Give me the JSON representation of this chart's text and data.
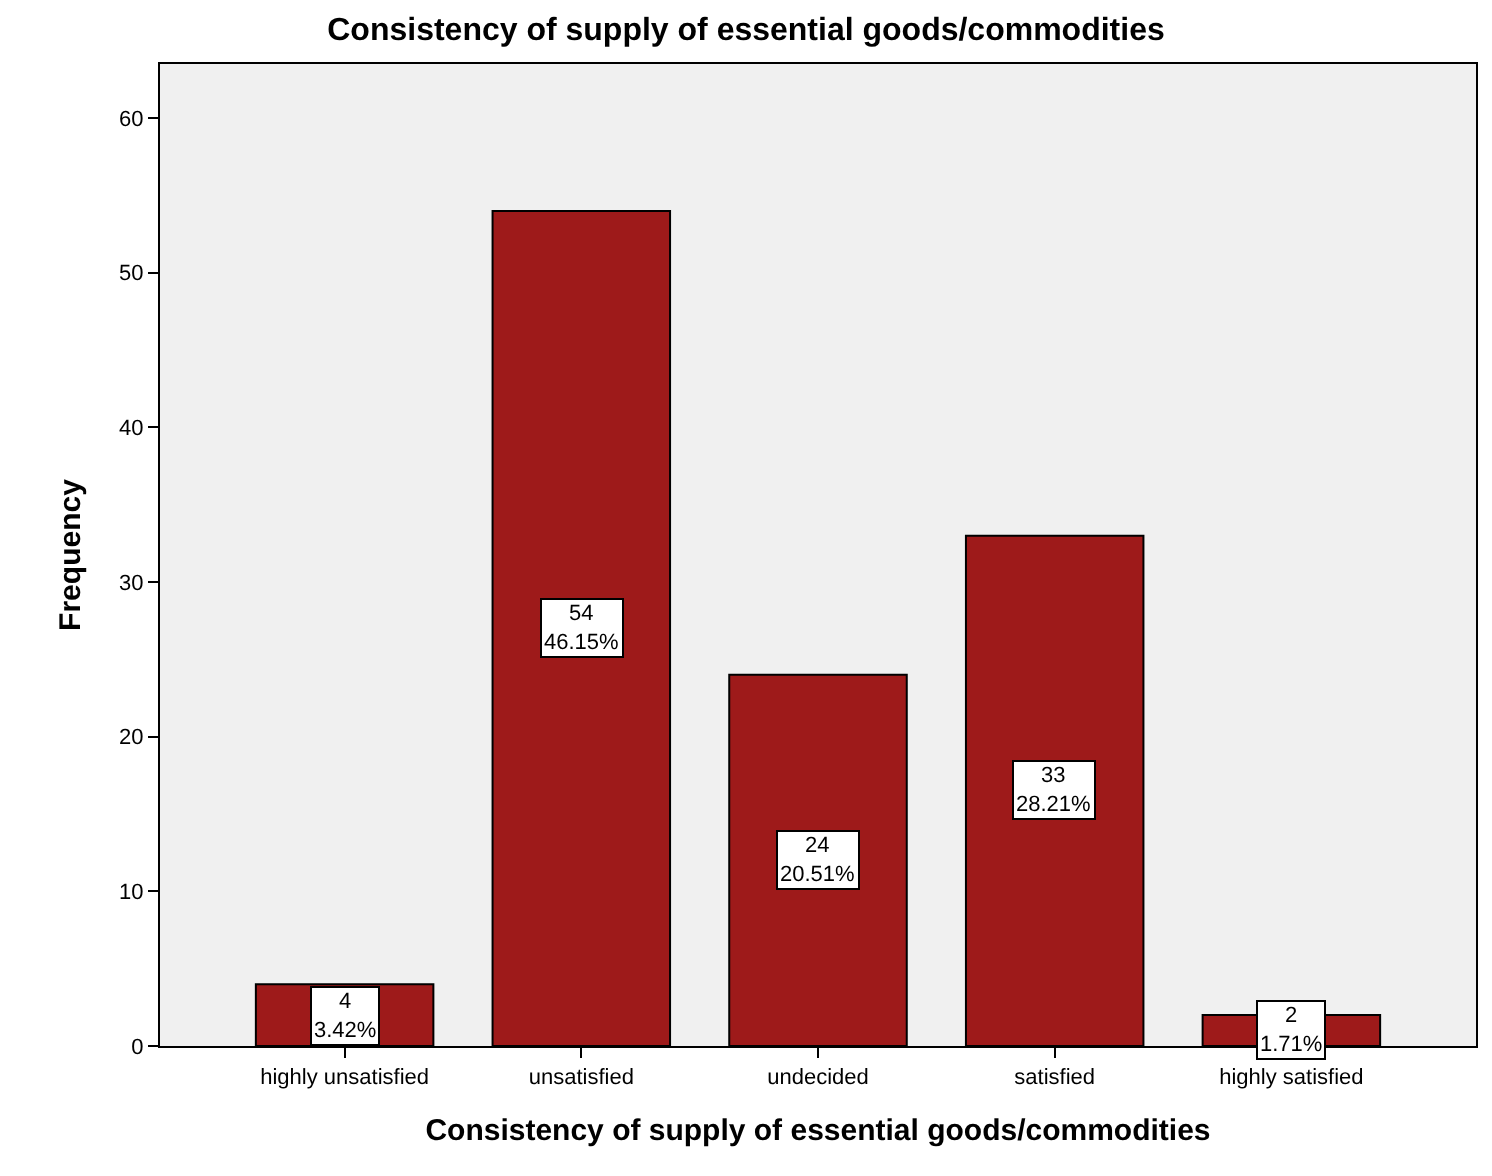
{
  "chart_data": {
    "type": "bar",
    "title": "Consistency of supply of essential goods/commodities",
    "xlabel": "Consistency of supply of essential goods/commodities",
    "ylabel": "Frequency",
    "categories": [
      "highly unsatisfied",
      "unsatisfied",
      "undecided",
      "satisfied",
      "highly satisfied"
    ],
    "values": [
      4,
      54,
      24,
      33,
      2
    ],
    "value_labels": [
      "4\n3.42%",
      "54\n46.15%",
      "24\n20.51%",
      "33\n28.21%",
      "2\n1.71%"
    ],
    "color": "#9e1a1a",
    "ylim": [
      0,
      63.5
    ],
    "yticks": [
      0,
      10,
      20,
      30,
      40,
      50,
      60
    ],
    "grid": false,
    "legend": false
  }
}
